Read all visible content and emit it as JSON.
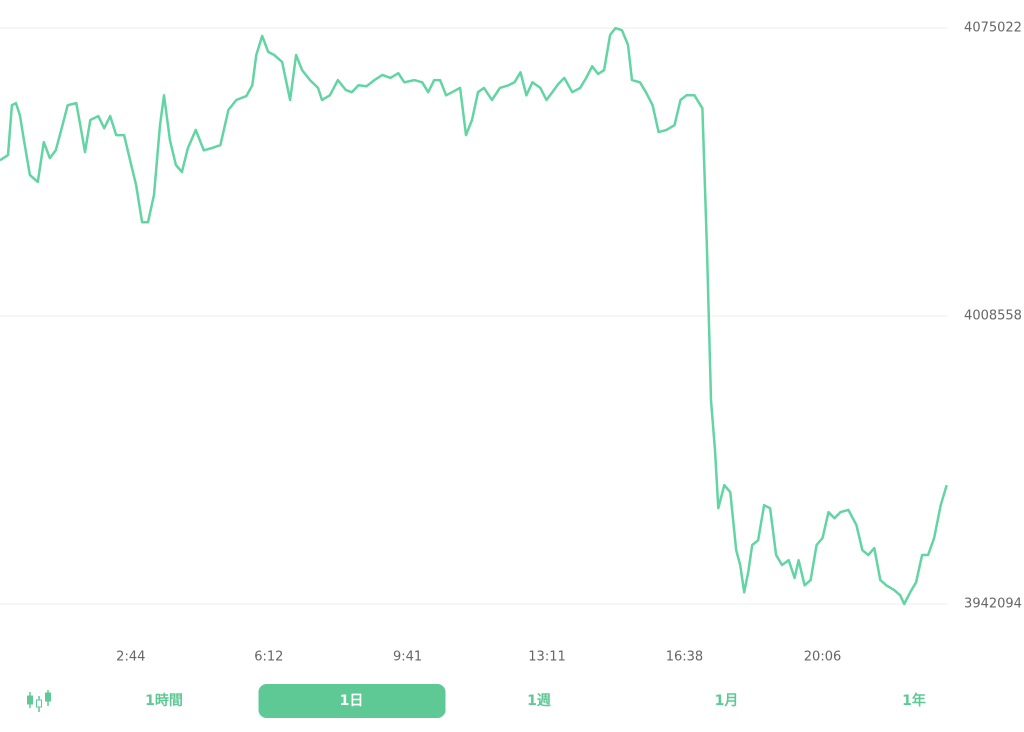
{
  "chart_data": {
    "type": "line",
    "color": "#63d4a3",
    "x": [
      -33,
      -21,
      -15,
      -9,
      -3,
      3,
      12,
      24,
      33,
      42,
      51,
      60,
      69,
      82,
      88,
      95,
      103,
      115,
      124,
      133,
      142,
      154,
      163,
      172,
      181,
      190,
      199,
      208,
      214,
      223,
      232,
      241,
      250,
      262,
      274,
      286,
      299,
      311,
      323,
      338,
      347,
      353,
      362,
      371,
      380,
      392,
      404,
      413,
      422,
      434,
      446,
      452,
      464,
      476,
      488,
      497,
      507,
      519,
      531,
      543,
      555,
      567,
      576,
      591,
      603,
      612,
      621,
      630,
      639,
      648,
      660,
      669,
      678,
      687,
      696,
      708,
      720,
      733,
      742,
      751,
      760,
      769,
      781,
      790,
      799,
      808,
      817,
      829,
      841,
      850,
      859,
      868,
      877,
      886,
      894,
      904,
      913,
      919,
      931,
      940,
      950,
      959,
      971,
      983,
      992,
      1001,
      1013,
      1025,
      1032,
      1038,
      1044,
      1049,
      1058,
      1067,
      1076,
      1082,
      1088,
      1094,
      1100,
      1109,
      1118,
      1127,
      1136,
      1145,
      1155,
      1164,
      1170,
      1179,
      1188,
      1197,
      1206,
      1215,
      1224,
      1233,
      1245,
      1257,
      1266,
      1275,
      1284,
      1293,
      1302,
      1314,
      1323,
      1329,
      1338,
      1347,
      1356,
      1365,
      1374,
      1384,
      1393
    ],
    "values": [
      4044500,
      4045700,
      4057200,
      4057700,
      4054900,
      4049200,
      4041100,
      4039500,
      4048700,
      4045000,
      4046800,
      4051900,
      4057200,
      4057700,
      4052600,
      4046400,
      4053800,
      4054700,
      4051900,
      4054700,
      4050300,
      4050300,
      4044500,
      4038800,
      4030200,
      4030200,
      4036500,
      4052600,
      4059500,
      4049200,
      4043400,
      4041800,
      4047300,
      4051500,
      4046800,
      4047300,
      4048000,
      4056100,
      4058400,
      4059300,
      4061800,
      4068800,
      4073200,
      4069500,
      4068800,
      4067200,
      4058400,
      4068800,
      4065300,
      4063000,
      4061200,
      4058400,
      4059500,
      4063000,
      4060700,
      4060200,
      4061800,
      4061600,
      4063000,
      4064200,
      4063500,
      4064600,
      4062500,
      4063000,
      4062500,
      4060200,
      4063000,
      4063000,
      4059500,
      4060200,
      4061200,
      4050300,
      4053800,
      4060200,
      4061200,
      4058400,
      4061200,
      4061800,
      4062500,
      4064800,
      4059500,
      4062500,
      4061200,
      4058400,
      4060200,
      4062100,
      4063500,
      4060200,
      4061200,
      4063500,
      4066200,
      4064400,
      4065300,
      4073400,
      4075000,
      4074500,
      4071100,
      4063000,
      4062500,
      4060200,
      4057200,
      4051000,
      4051500,
      4052600,
      4058400,
      4059500,
      4059500,
      4056500,
      4023800,
      3989100,
      3977600,
      3964200,
      3969500,
      3967900,
      3954500,
      3951100,
      3944800,
      3949400,
      3955700,
      3956800,
      3964900,
      3964200,
      3953400,
      3951100,
      3952200,
      3948100,
      3952200,
      3946400,
      3947600,
      3955700,
      3957300,
      3963300,
      3961900,
      3963300,
      3963800,
      3960300,
      3954500,
      3953400,
      3955000,
      3947600,
      3946400,
      3945300,
      3944100,
      3942100,
      3944800,
      3947100,
      3953400,
      3953400,
      3957300,
      3964900,
      3969500
    ],
    "xlim": [
      -33,
      1395
    ],
    "xticks": [
      {
        "value": 164,
        "label": "2:44"
      },
      {
        "value": 372,
        "label": "6:12"
      },
      {
        "value": 581,
        "label": "9:41"
      },
      {
        "value": 791,
        "label": "13:11"
      },
      {
        "value": 998,
        "label": "16:38"
      },
      {
        "value": 1206,
        "label": "20:06"
      }
    ],
    "ylim": [
      3942094,
      4075022
    ],
    "yticks": [
      3942094,
      4008558,
      4075022
    ],
    "grid": true
  },
  "tabs": [
    {
      "label": "1時間",
      "selected": false
    },
    {
      "label": "1日",
      "selected": true
    },
    {
      "label": "1週",
      "selected": false
    },
    {
      "label": "1月",
      "selected": false
    },
    {
      "label": "1年",
      "selected": false
    }
  ]
}
